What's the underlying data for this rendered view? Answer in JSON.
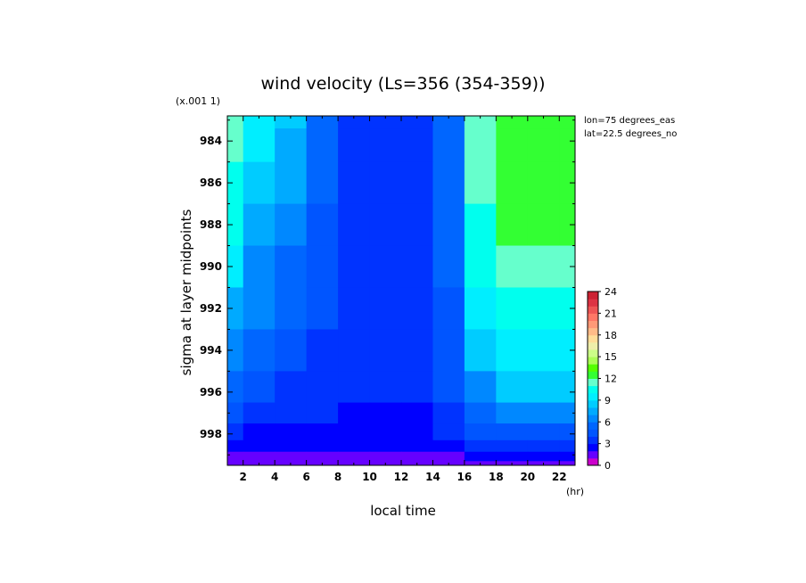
{
  "chart_data": {
    "type": "heatmap",
    "title": "wind velocity (Ls=356 (354-359))",
    "xlabel": "local time",
    "ylabel": "sigma at layer midpoints",
    "x_unit": "(hr)",
    "y_multiplier": "(x.001 1)",
    "annotations": [
      "lon=75 degrees_eas",
      "lat=22.5 degrees_no"
    ],
    "xlim": [
      1,
      23
    ],
    "ylim": [
      999.5,
      982.8
    ],
    "x_ticks": [
      2,
      4,
      6,
      8,
      10,
      12,
      14,
      16,
      18,
      20,
      22
    ],
    "y_ticks": [
      984,
      986,
      988,
      990,
      992,
      994,
      996,
      998
    ],
    "x": [
      1,
      3,
      5,
      7,
      9,
      11,
      13,
      15,
      17,
      19,
      21,
      23
    ],
    "y": [
      982.8,
      984,
      986,
      988,
      990,
      992,
      994,
      996,
      997,
      998,
      998.6,
      999.1,
      999.5
    ],
    "values": [
      [
        11.0,
        9.5,
        8.0,
        5.0,
        3.5,
        3.0,
        3.5,
        5.5,
        11.0,
        12.5,
        12.5,
        12.0
      ],
      [
        11.0,
        9.0,
        7.5,
        5.0,
        3.5,
        3.0,
        3.5,
        5.5,
        11.0,
        12.5,
        12.5,
        12.0
      ],
      [
        10.5,
        8.5,
        7.0,
        5.0,
        3.5,
        3.0,
        3.5,
        5.5,
        11.0,
        12.0,
        12.0,
        12.0
      ],
      [
        10.0,
        7.0,
        6.0,
        4.5,
        3.0,
        3.0,
        3.5,
        5.0,
        10.5,
        12.0,
        12.0,
        12.0
      ],
      [
        9.0,
        6.5,
        5.5,
        4.5,
        3.0,
        3.0,
        3.5,
        5.0,
        10.0,
        11.5,
        11.5,
        11.5
      ],
      [
        7.5,
        6.0,
        5.0,
        4.0,
        3.0,
        3.0,
        3.0,
        4.5,
        9.5,
        10.5,
        10.5,
        10.5
      ],
      [
        6.5,
        5.0,
        4.5,
        3.5,
        3.0,
        3.0,
        3.0,
        4.5,
        8.0,
        9.5,
        9.5,
        9.5
      ],
      [
        5.0,
        4.0,
        3.5,
        3.5,
        3.0,
        3.0,
        3.0,
        4.0,
        6.0,
        8.0,
        8.0,
        8.0
      ],
      [
        4.0,
        3.0,
        3.0,
        3.0,
        2.5,
        2.5,
        2.5,
        3.5,
        5.0,
        6.0,
        6.0,
        6.0
      ],
      [
        3.0,
        2.5,
        2.5,
        2.5,
        2.5,
        2.5,
        2.5,
        3.0,
        4.0,
        4.5,
        4.5,
        4.5
      ],
      [
        2.0,
        2.0,
        2.0,
        2.0,
        2.0,
        2.0,
        2.0,
        2.5,
        3.0,
        3.5,
        3.5,
        3.5
      ],
      [
        1.5,
        1.5,
        1.5,
        1.5,
        1.5,
        1.5,
        1.5,
        1.5,
        2.0,
        2.5,
        2.5,
        2.5
      ],
      [
        1.0,
        1.0,
        1.0,
        1.0,
        1.0,
        1.0,
        1.0,
        1.0,
        1.5,
        1.5,
        1.5,
        1.5
      ]
    ],
    "colorbar": {
      "min": 0,
      "max": 24,
      "step": 1,
      "ticks": [
        0,
        3,
        6,
        9,
        12,
        15,
        18,
        21,
        24
      ],
      "colors": [
        "#cc00cc",
        "#6600ff",
        "#0000ff",
        "#0033ff",
        "#0055ff",
        "#0066ff",
        "#0088ff",
        "#00aaff",
        "#00ccff",
        "#00eeff",
        "#00ffee",
        "#66ffcc",
        "#33ff33",
        "#55ff00",
        "#aaff55",
        "#ccff88",
        "#eeeeaa",
        "#ffdd99",
        "#ffbb88",
        "#ff9977",
        "#ff7766",
        "#ee5555",
        "#dd3344",
        "#cc2233"
      ]
    }
  }
}
